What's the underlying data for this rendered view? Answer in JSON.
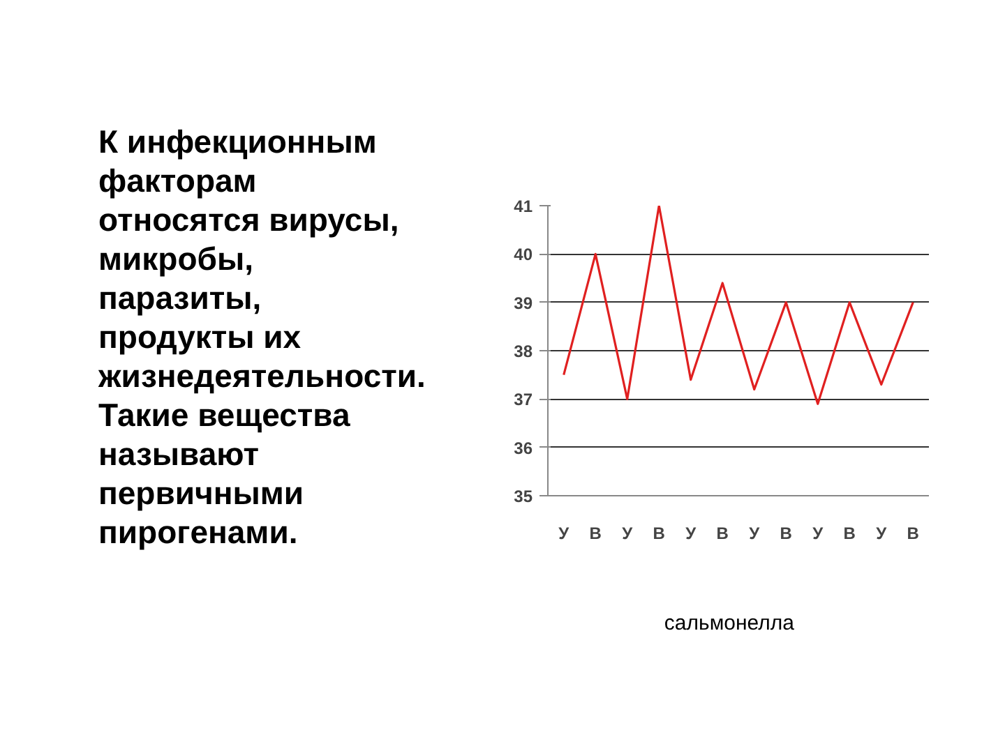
{
  "chart_data": {
    "type": "line",
    "categories": [
      "У",
      "В",
      "У",
      "В",
      "У",
      "В",
      "У",
      "В",
      "У",
      "В",
      "У",
      "В"
    ],
    "series": [
      {
        "color": "#e02020",
        "values": [
          37.5,
          40,
          37,
          41,
          37.4,
          39.4,
          37.2,
          39,
          36.9,
          39,
          37.3,
          39
        ]
      }
    ],
    "ylim": [
      35,
      41
    ],
    "yticks": [
      35,
      36,
      37,
      38,
      39,
      40,
      41
    ],
    "grid": "y",
    "marker": "none",
    "line_style": "solid",
    "annotations": [
      "К инфекционным факторам относятся вирусы, микробы, паразиты, продукты их жизнедеятельности. Такие вещества называют первичными пирогенами.",
      "сальмонелла"
    ]
  }
}
